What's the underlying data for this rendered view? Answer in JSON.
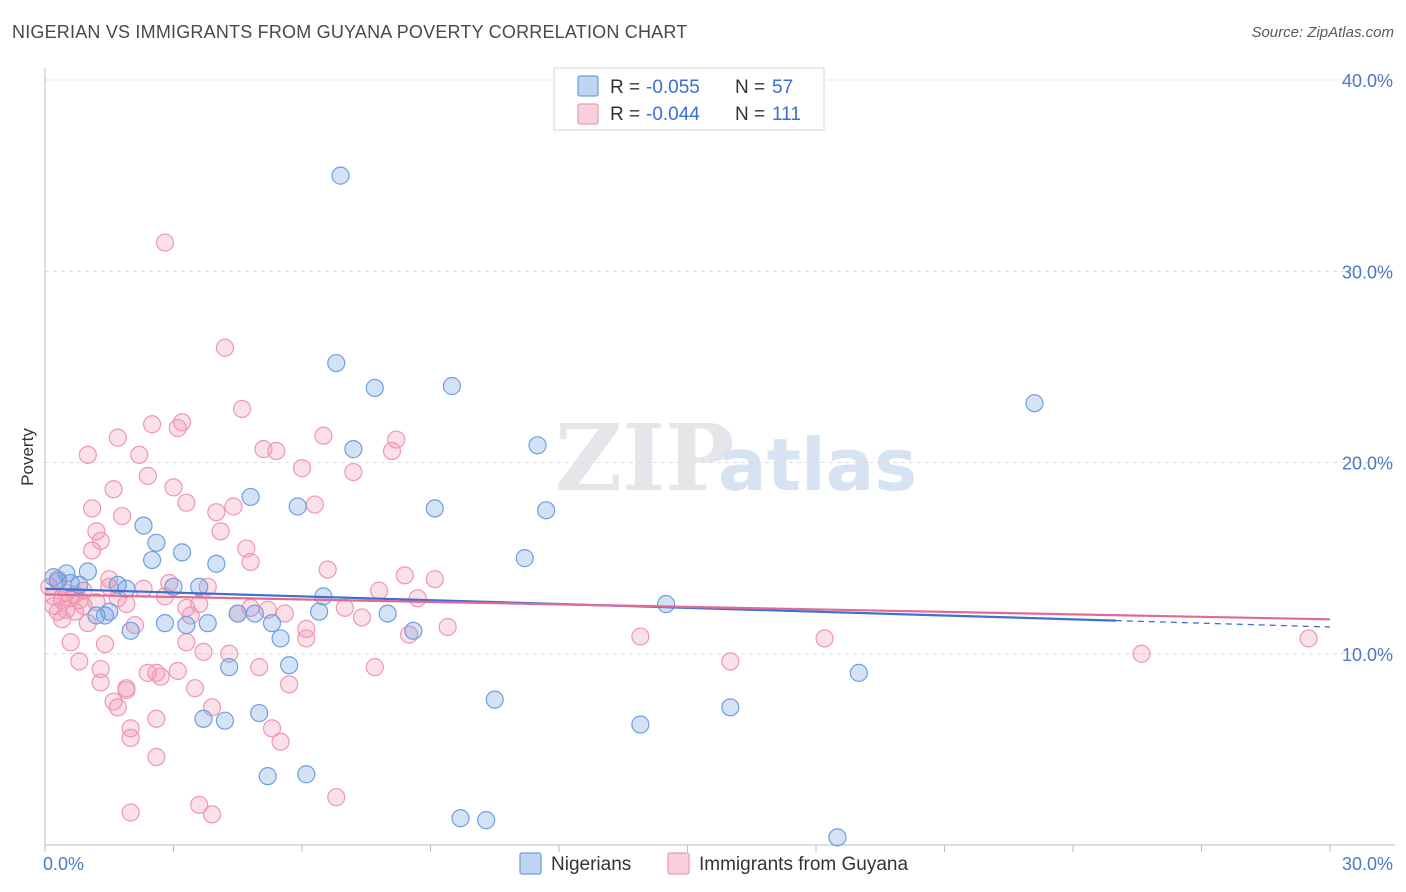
{
  "title": "NIGERIAN VS IMMIGRANTS FROM GUYANA POVERTY CORRELATION CHART",
  "source": "Source: ZipAtlas.com",
  "watermark": {
    "zip": "ZIP",
    "atlas": "atlas"
  },
  "chart_data": {
    "type": "scatter",
    "title": "NIGERIAN VS IMMIGRANTS FROM GUYANA POVERTY CORRELATION CHART",
    "xlabel": "",
    "ylabel": "Poverty",
    "xlim": [
      0,
      30
    ],
    "ylim": [
      0,
      40
    ],
    "x_ticks": [
      0,
      30
    ],
    "x_tick_labels": [
      "0.0%",
      "30.0%"
    ],
    "y_ticks": [
      10,
      20,
      30,
      40
    ],
    "y_tick_labels": [
      "10.0%",
      "20.0%",
      "30.0%",
      "40.0%"
    ],
    "legend": {
      "position": "top-center",
      "entries": [
        {
          "r_label": "R =",
          "r_value": "-0.055",
          "n_label": "N =",
          "n_value": "57"
        },
        {
          "r_label": "R =",
          "r_value": "-0.044",
          "n_label": "N =",
          "n_value": "111"
        }
      ]
    },
    "series": [
      {
        "name": "Nigerians",
        "color": "#6f9fe0",
        "line_color": "#3f6fd1",
        "trend": {
          "x0": 0,
          "y0": 13.4,
          "x1": 30,
          "y1": 11.4,
          "solid_until": 25
        },
        "points": [
          [
            0.2,
            14.0
          ],
          [
            0.3,
            13.8
          ],
          [
            0.5,
            14.2
          ],
          [
            0.6,
            13.7
          ],
          [
            0.8,
            13.6
          ],
          [
            1.0,
            14.3
          ],
          [
            1.2,
            12.0
          ],
          [
            1.4,
            12.0
          ],
          [
            1.5,
            12.2
          ],
          [
            1.7,
            13.6
          ],
          [
            1.9,
            13.4
          ],
          [
            2.0,
            11.2
          ],
          [
            2.3,
            16.7
          ],
          [
            2.5,
            14.9
          ],
          [
            2.6,
            15.8
          ],
          [
            2.8,
            11.6
          ],
          [
            3.0,
            13.5
          ],
          [
            3.2,
            15.3
          ],
          [
            3.3,
            11.5
          ],
          [
            3.6,
            13.5
          ],
          [
            3.7,
            6.6
          ],
          [
            3.8,
            11.6
          ],
          [
            4.0,
            14.7
          ],
          [
            4.2,
            6.5
          ],
          [
            4.3,
            9.3
          ],
          [
            4.5,
            12.1
          ],
          [
            4.8,
            18.2
          ],
          [
            4.9,
            12.1
          ],
          [
            5.0,
            6.9
          ],
          [
            5.2,
            3.6
          ],
          [
            5.3,
            11.6
          ],
          [
            5.5,
            10.8
          ],
          [
            5.7,
            9.4
          ],
          [
            5.9,
            17.7
          ],
          [
            6.1,
            3.7
          ],
          [
            6.4,
            12.2
          ],
          [
            6.5,
            13.0
          ],
          [
            6.8,
            25.2
          ],
          [
            6.9,
            35.0
          ],
          [
            7.2,
            20.7
          ],
          [
            7.7,
            23.9
          ],
          [
            8.0,
            12.1
          ],
          [
            8.6,
            11.2
          ],
          [
            9.1,
            17.6
          ],
          [
            9.5,
            24.0
          ],
          [
            9.7,
            1.4
          ],
          [
            10.3,
            1.3
          ],
          [
            10.5,
            7.6
          ],
          [
            11.2,
            15.0
          ],
          [
            11.5,
            20.9
          ],
          [
            11.7,
            17.5
          ],
          [
            13.9,
            6.3
          ],
          [
            14.5,
            12.6
          ],
          [
            16.0,
            7.2
          ],
          [
            18.5,
            0.4
          ],
          [
            19.0,
            9.0
          ],
          [
            23.1,
            23.1
          ]
        ]
      },
      {
        "name": "Immigrants from Guyana",
        "color": "#f097b4",
        "line_color": "#e06a94",
        "trend": {
          "x0": 0,
          "y0": 13.1,
          "x1": 30,
          "y1": 11.8,
          "solid_until": 30
        },
        "points": [
          [
            0.1,
            13.5
          ],
          [
            0.2,
            13.0
          ],
          [
            0.2,
            12.5
          ],
          [
            0.3,
            12.2
          ],
          [
            0.3,
            13.9
          ],
          [
            0.4,
            12.8
          ],
          [
            0.4,
            11.8
          ],
          [
            0.5,
            12.3
          ],
          [
            0.5,
            13.2
          ],
          [
            0.6,
            12.9
          ],
          [
            0.6,
            10.6
          ],
          [
            0.7,
            13.1
          ],
          [
            0.7,
            12.2
          ],
          [
            0.8,
            12.8
          ],
          [
            0.8,
            9.6
          ],
          [
            0.9,
            12.5
          ],
          [
            0.9,
            13.3
          ],
          [
            1.0,
            11.6
          ],
          [
            1.0,
            20.4
          ],
          [
            1.1,
            15.4
          ],
          [
            1.1,
            17.6
          ],
          [
            1.2,
            12.7
          ],
          [
            1.2,
            16.4
          ],
          [
            1.3,
            9.2
          ],
          [
            1.3,
            15.9
          ],
          [
            1.3,
            8.5
          ],
          [
            1.4,
            10.5
          ],
          [
            1.5,
            13.5
          ],
          [
            1.5,
            13.9
          ],
          [
            1.6,
            18.6
          ],
          [
            1.6,
            7.5
          ],
          [
            1.7,
            7.2
          ],
          [
            1.7,
            12.9
          ],
          [
            1.7,
            21.3
          ],
          [
            1.8,
            17.2
          ],
          [
            1.9,
            8.1
          ],
          [
            1.9,
            8.2
          ],
          [
            1.9,
            12.6
          ],
          [
            2.0,
            6.1
          ],
          [
            2.0,
            5.6
          ],
          [
            2.0,
            1.7
          ],
          [
            2.1,
            11.5
          ],
          [
            2.2,
            20.4
          ],
          [
            2.3,
            13.4
          ],
          [
            2.4,
            19.3
          ],
          [
            2.4,
            9.0
          ],
          [
            2.5,
            22.0
          ],
          [
            2.6,
            9.0
          ],
          [
            2.6,
            6.6
          ],
          [
            2.6,
            4.6
          ],
          [
            2.7,
            8.8
          ],
          [
            2.8,
            31.5
          ],
          [
            2.9,
            13.7
          ],
          [
            3.0,
            18.7
          ],
          [
            3.1,
            9.1
          ],
          [
            3.1,
            21.8
          ],
          [
            3.2,
            22.1
          ],
          [
            3.3,
            12.4
          ],
          [
            3.3,
            10.6
          ],
          [
            3.3,
            17.9
          ],
          [
            3.4,
            12.0
          ],
          [
            3.5,
            8.2
          ],
          [
            3.6,
            12.6
          ],
          [
            3.6,
            2.1
          ],
          [
            3.7,
            10.1
          ],
          [
            3.8,
            13.5
          ],
          [
            3.9,
            7.2
          ],
          [
            3.9,
            1.6
          ],
          [
            4.0,
            17.4
          ],
          [
            4.1,
            16.4
          ],
          [
            4.2,
            26.0
          ],
          [
            4.3,
            10.0
          ],
          [
            4.4,
            17.7
          ],
          [
            4.5,
            12.1
          ],
          [
            4.6,
            22.8
          ],
          [
            4.7,
            15.5
          ],
          [
            4.8,
            14.8
          ],
          [
            4.8,
            12.4
          ],
          [
            5.0,
            9.3
          ],
          [
            5.1,
            20.7
          ],
          [
            5.2,
            12.3
          ],
          [
            5.3,
            6.1
          ],
          [
            5.4,
            20.6
          ],
          [
            5.5,
            5.4
          ],
          [
            5.6,
            12.1
          ],
          [
            5.7,
            8.4
          ],
          [
            6.0,
            19.7
          ],
          [
            6.1,
            10.8
          ],
          [
            6.3,
            17.8
          ],
          [
            6.5,
            21.4
          ],
          [
            6.6,
            14.4
          ],
          [
            6.8,
            2.5
          ],
          [
            7.0,
            12.4
          ],
          [
            7.2,
            19.5
          ],
          [
            7.4,
            11.9
          ],
          [
            7.7,
            9.3
          ],
          [
            7.8,
            13.3
          ],
          [
            8.1,
            20.6
          ],
          [
            8.2,
            21.2
          ],
          [
            8.4,
            14.1
          ],
          [
            8.5,
            11.0
          ],
          [
            8.7,
            12.9
          ],
          [
            9.1,
            13.9
          ],
          [
            9.4,
            11.4
          ],
          [
            13.9,
            10.9
          ],
          [
            16.0,
            9.6
          ],
          [
            18.2,
            10.8
          ],
          [
            25.6,
            10.0
          ],
          [
            29.5,
            10.8
          ],
          [
            6.1,
            11.3
          ],
          [
            2.8,
            13.0
          ]
        ]
      }
    ]
  }
}
